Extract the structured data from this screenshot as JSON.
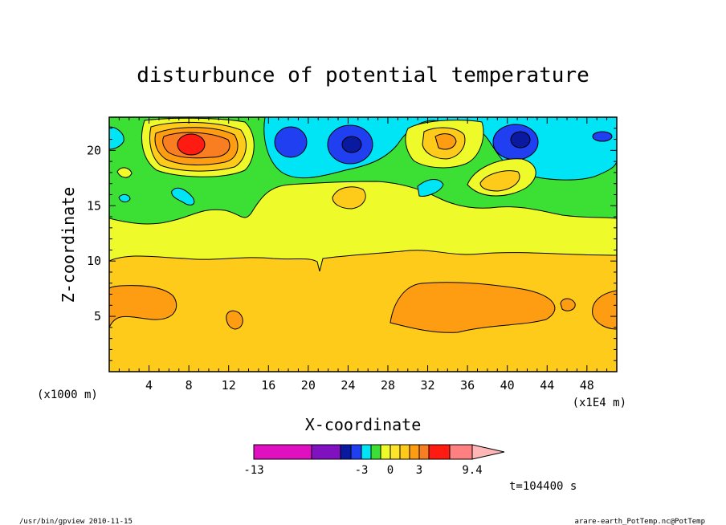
{
  "chart_data": {
    "type": "heatmap",
    "title": "disturbunce of potential temperature",
    "xlabel": "X-coordinate",
    "ylabel": "Z-coordinate",
    "x_unit_left": "(x1000 m)",
    "x_unit_right": "(x1E4 m)",
    "xlim": [
      0,
      51
    ],
    "ylim": [
      0,
      23
    ],
    "xticks": [
      4,
      8,
      12,
      16,
      20,
      24,
      28,
      32,
      36,
      40,
      44,
      48
    ],
    "yticks": [
      5,
      10,
      15,
      20
    ],
    "time_label": "t=104400 s",
    "colorbar": {
      "tick_labels": [
        {
          "value": -13,
          "label": "-13"
        },
        {
          "value": -3,
          "label": "-3"
        },
        {
          "value": 0,
          "label": "0"
        },
        {
          "value": 3,
          "label": "3"
        },
        {
          "value": 9.4,
          "label": "9.4"
        }
      ],
      "bins": [
        {
          "from": -13,
          "to": -8,
          "color": "#e010c0"
        },
        {
          "from": -8,
          "to": -5,
          "color": "#8010c0"
        },
        {
          "from": -5,
          "to": -4,
          "color": "#0a1aa0"
        },
        {
          "from": -4,
          "to": -3,
          "color": "#1f3ff0"
        },
        {
          "from": -3,
          "to": -2,
          "color": "#00e5f5"
        },
        {
          "from": -2,
          "to": -1,
          "color": "#3ce034"
        },
        {
          "from": -1,
          "to": 0,
          "color": "#eefa2a"
        },
        {
          "from": 0,
          "to": 1,
          "color": "#fde42a"
        },
        {
          "from": 1,
          "to": 2,
          "color": "#ffcb1a"
        },
        {
          "from": 2,
          "to": 3,
          "color": "#ff9d12"
        },
        {
          "from": 3,
          "to": 4,
          "color": "#f97e22"
        },
        {
          "from": 4,
          "to": 7,
          "color": "#ff1a12"
        },
        {
          "from": 7,
          "to": 9.4,
          "color": "#ff8080"
        },
        {
          "from": 9.4,
          "to": 12,
          "color": "#ffb6b6"
        }
      ]
    },
    "regions": [
      {
        "level": "background",
        "color": "#ffcb1a"
      },
      {
        "level": "orange-low-1",
        "color": "#ff9d12",
        "x": [
          0,
          7
        ],
        "z": [
          4,
          8
        ]
      },
      {
        "level": "orange-low-2",
        "color": "#ff9d12",
        "x": [
          28,
          44
        ],
        "z": [
          3.5,
          8
        ]
      },
      {
        "level": "yellow-mid",
        "color": "#eefa2a",
        "x": [
          0,
          51
        ],
        "z": [
          10.5,
          15.5
        ]
      },
      {
        "level": "green-upper",
        "color": "#3ce034",
        "x": [
          0,
          51
        ],
        "z": [
          15,
          23
        ]
      },
      {
        "level": "cyan-upper",
        "color": "#00e5f5",
        "x": [
          16,
          47
        ],
        "z": [
          17.5,
          23
        ]
      },
      {
        "level": "blue-cell-1",
        "color": "#1f3ff0",
        "x": [
          17,
          20
        ],
        "z": [
          19.5,
          22
        ]
      },
      {
        "level": "blue-cell-2",
        "color": "#1f3ff0",
        "x": [
          22,
          27
        ],
        "z": [
          19,
          22.5
        ]
      },
      {
        "level": "blue-cell-3",
        "color": "#1f3ff0",
        "x": [
          39,
          44
        ],
        "z": [
          19.5,
          22.5
        ]
      },
      {
        "level": "red-cell",
        "color": "#ff1a12",
        "x": [
          6,
          10
        ],
        "z": [
          19.5,
          21.5
        ]
      }
    ]
  },
  "footer": {
    "left": "/usr/bin/gpview  2010-11-15",
    "right": "arare-earth_PotTemp.nc@PotTemp"
  },
  "colors": {
    "frame": "#000000",
    "background": "#ffffff"
  }
}
